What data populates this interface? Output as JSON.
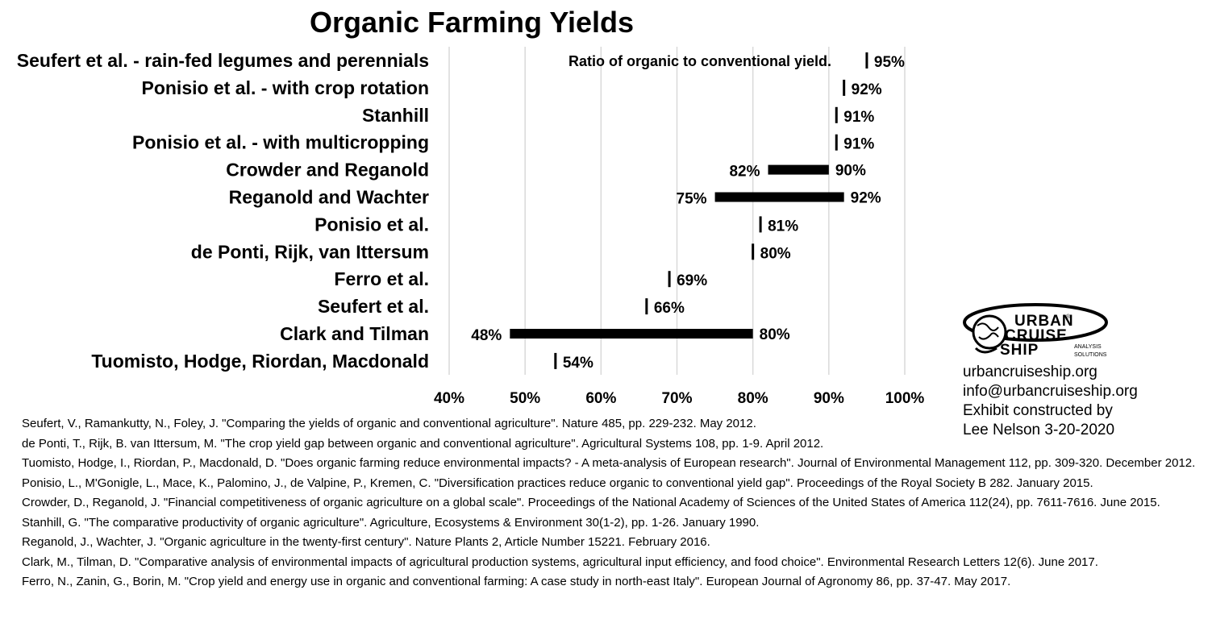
{
  "chart_data": {
    "type": "bar",
    "title": "Organic Farming Yields",
    "subtitle": "Ratio of organic to conventional yield.",
    "xlabel": "",
    "ylabel": "",
    "xlim": [
      40,
      100
    ],
    "x_ticks": [
      "40%",
      "50%",
      "60%",
      "70%",
      "80%",
      "90%",
      "100%"
    ],
    "grid": true,
    "categories": [
      "Seufert et al. - rain-fed legumes and perennials",
      "Ponisio et al. - with crop rotation",
      "Stanhill",
      "Ponisio et al. - with multicropping",
      "Crowder and Reganold",
      "Reganold and Wachter",
      "Ponisio et al.",
      "de Ponti, Rijk, van Ittersum",
      "Ferro et al.",
      "Seufert et al.",
      "Clark and Tilman",
      "Tuomisto, Hodge, Riordan, Macdonald"
    ],
    "ranges": [
      {
        "low": null,
        "high": 95,
        "low_label": "",
        "high_label": "95%"
      },
      {
        "low": null,
        "high": 92,
        "low_label": "",
        "high_label": "92%"
      },
      {
        "low": null,
        "high": 91,
        "low_label": "",
        "high_label": "91%"
      },
      {
        "low": null,
        "high": 91,
        "low_label": "",
        "high_label": "91%"
      },
      {
        "low": 82,
        "high": 90,
        "low_label": "82%",
        "high_label": "90%"
      },
      {
        "low": 75,
        "high": 92,
        "low_label": "75%",
        "high_label": "92%"
      },
      {
        "low": null,
        "high": 81,
        "low_label": "",
        "high_label": "81%"
      },
      {
        "low": null,
        "high": 80,
        "low_label": "",
        "high_label": "80%"
      },
      {
        "low": null,
        "high": 69,
        "low_label": "",
        "high_label": "69%"
      },
      {
        "low": null,
        "high": 66,
        "low_label": "",
        "high_label": "66%"
      },
      {
        "low": 48,
        "high": 80,
        "low_label": "48%",
        "high_label": "80%"
      },
      {
        "low": null,
        "high": 54,
        "low_label": "",
        "high_label": "54%"
      }
    ]
  },
  "logo": {
    "line1": "URBAN",
    "line2": "CRUISE",
    "line3": "SHIP",
    "tag1": "ANALYSIS",
    "tag2": "SOLUTIONS",
    "mark": "®",
    "icon": "globe-ship-logo-icon"
  },
  "contact": {
    "website": "urbancruiseship.org",
    "email": "info@urbancruiseship.org",
    "credit_line1": "Exhibit constructed by",
    "credit_line2": "Lee Nelson 3-20-2020"
  },
  "references": [
    "Seufert, V., Ramankutty, N., Foley, J. \"Comparing the yields of organic and conventional agriculture\". Nature 485, pp. 229-232. May 2012.",
    "de Ponti, T., Rijk, B. van Ittersum, M. \"The crop yield gap between organic and conventional agriculture\". Agricultural Systems 108, pp. 1-9. April 2012.",
    "Tuomisto, Hodge, I., Riordan, P., Macdonald, D. \"Does organic farming reduce environmental impacts? - A meta-analysis of European research\". Journal of Environmental Management 112, pp. 309-320. December 2012.",
    "Ponisio, L., M'Gonigle, L., Mace, K., Palomino, J., de Valpine, P., Kremen, C. \"Diversification practices reduce organic to conventional yield gap\". Proceedings of the Royal Society B 282. January 2015.",
    "Crowder, D., Reganold, J. \"Financial competitiveness of organic agriculture on a global scale\". Proceedings of the National Academy of Sciences of the United States of America 112(24), pp. 7611-7616. June 2015.",
    "Stanhill, G. \"The comparative productivity of organic agriculture\". Agriculture, Ecosystems & Environment 30(1-2), pp. 1-26. January 1990.",
    "Reganold, J., Wachter, J. \"Organic agriculture in the twenty-first century\". Nature Plants 2, Article Number 15221. February 2016.",
    "Clark, M., Tilman, D. \"Comparative analysis of environmental impacts of agricultural production systems, agricultural input efficiency, and food choice\". Environmental Research Letters 12(6). June 2017.",
    "Ferro, N., Zanin, G., Borin, M. \"Crop yield and energy use in organic and conventional farming: A case study in north-east Italy\". European Journal of Agronomy 86, pp. 37-47. May 2017."
  ]
}
